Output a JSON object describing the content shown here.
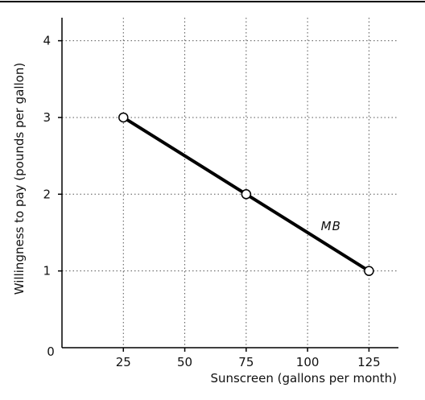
{
  "chart_data": {
    "type": "line",
    "title": "",
    "xlabel": "Sunscreen (gallons per month)",
    "ylabel": "Willingness to pay (pounds per gallon)",
    "xlim": [
      0,
      137
    ],
    "ylim": [
      0,
      4.3
    ],
    "x_ticks": [
      25,
      50,
      75,
      100,
      125
    ],
    "y_ticks": [
      1,
      2,
      3,
      4
    ],
    "origin_label": "0",
    "grid": true,
    "grid_style": "dotted",
    "legend": "none",
    "series": [
      {
        "name": "MB",
        "color": "#000000",
        "marker": "open-circle",
        "points": [
          {
            "x": 25,
            "y": 3
          },
          {
            "x": 75,
            "y": 2
          },
          {
            "x": 125,
            "y": 1
          }
        ]
      }
    ],
    "annotations": [
      {
        "text": "MB",
        "x": 103,
        "y": 1.5
      }
    ]
  }
}
